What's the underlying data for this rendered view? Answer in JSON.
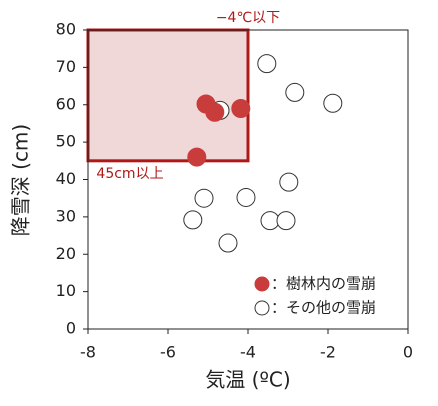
{
  "chart_data": {
    "type": "scatter",
    "xlabel": "気温 (ºC)",
    "ylabel": "降雪深 (cm)",
    "xlim": [
      -8,
      0
    ],
    "xticks": [
      -8,
      -6,
      -4,
      -2,
      0
    ],
    "ylim": [
      0,
      80
    ],
    "yticks": [
      0,
      10,
      20,
      30,
      40,
      50,
      60,
      70,
      80
    ],
    "grid": false,
    "highlight": {
      "x": [
        -8,
        -4
      ],
      "y": [
        45,
        80
      ],
      "color": "#b01818",
      "fill": "#f0d8d8"
    },
    "annotations": [
      {
        "text": "−4℃以下"
      },
      {
        "text": "45cm以上"
      }
    ],
    "legend": "lower right",
    "series": [
      {
        "name": "：その他の雪崩",
        "color": "#ffffff",
        "edgecolor": "#333333",
        "x": [
          -4.7,
          -3.53,
          -2.83,
          -1.88,
          -2.98,
          -5.1,
          -4.05,
          -5.38,
          -3.45,
          -3.05,
          -4.5
        ],
        "values": [
          58.5,
          71,
          63.3,
          60.4,
          39.3,
          35,
          35.2,
          29.2,
          29,
          29,
          23
        ]
      },
      {
        "name": "：樹林内の雪崩",
        "color": "#c83c3c",
        "edgecolor": "#c83c3c",
        "x": [
          -5.28,
          -5.05,
          -4.83,
          -4.18
        ],
        "values": [
          46,
          60.2,
          58,
          59
        ]
      }
    ]
  }
}
